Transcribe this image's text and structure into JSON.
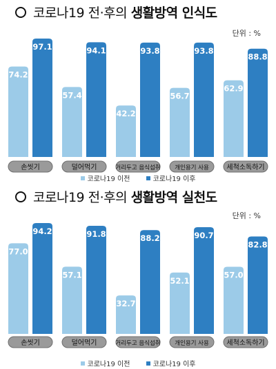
{
  "colors": {
    "before": "#9ccbe8",
    "after": "#2e7fc2",
    "pill_fill": "#9a9a9a",
    "pill_stroke": "#6e6e6e",
    "value_text": "#ffffff"
  },
  "legend": {
    "before_label": "코로나19 이전",
    "after_label": "코로나19 이후"
  },
  "chart_data": [
    {
      "type": "bar",
      "title_prefix": "코로나19 전·후의 ",
      "title_bold": "생활방역 인식도",
      "unit": "단위 : %",
      "categories": [
        "손씻기",
        "덜어먹기",
        "거리두고 음식섭취",
        "개인용기 사용",
        "세척소독하기"
      ],
      "series": [
        {
          "name": "코로나19 이전",
          "values": [
            74.2,
            57.4,
            42.2,
            56.7,
            62.9
          ]
        },
        {
          "name": "코로나19 이후",
          "values": [
            97.1,
            94.1,
            93.8,
            93.8,
            88.8
          ]
        }
      ],
      "ylim": [
        0,
        100
      ],
      "grid": false,
      "legend_position": "bottom"
    },
    {
      "type": "bar",
      "title_prefix": "코로나19 전·후의 ",
      "title_bold": "생활방역 실천도",
      "unit": "단위 : %",
      "categories": [
        "손씻기",
        "덜어먹기",
        "거리두고 음식섭취",
        "개인용기 사용",
        "세척소독하기"
      ],
      "series": [
        {
          "name": "코로나19 이전",
          "values": [
            77.0,
            57.1,
            32.7,
            52.1,
            57.0
          ]
        },
        {
          "name": "코로나19 이후",
          "values": [
            94.2,
            91.8,
            88.2,
            90.7,
            82.8
          ]
        }
      ],
      "ylim": [
        0,
        100
      ],
      "grid": false,
      "legend_position": "bottom"
    }
  ]
}
